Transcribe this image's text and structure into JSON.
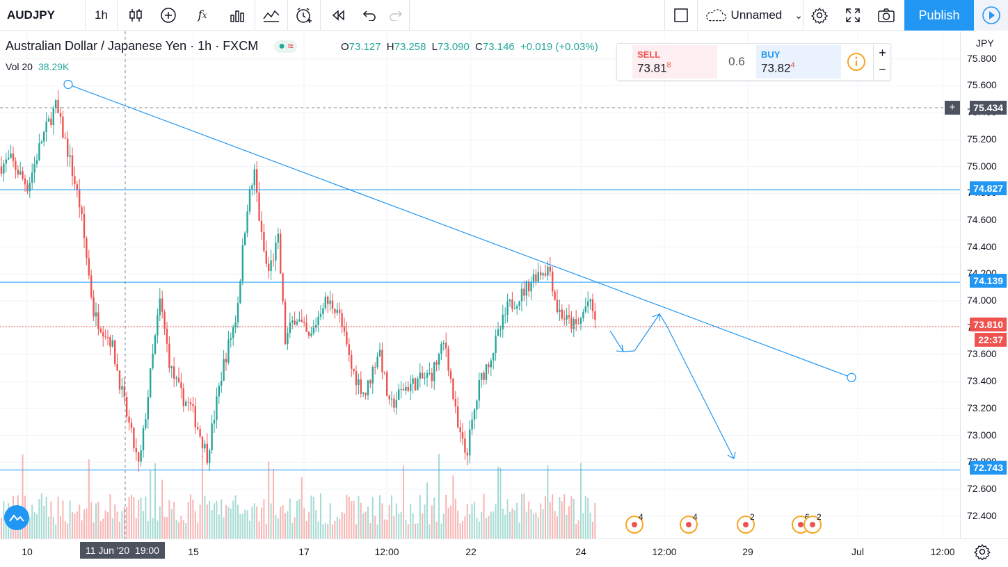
{
  "toolbar": {
    "symbol": "AUDJPY",
    "interval": "1h",
    "layout_name": "Unnamed",
    "publish_label": "Publish"
  },
  "legend": {
    "title": "Australian Dollar / Japanese Yen · 1h · FXCM",
    "open_label": "O",
    "open": "73.127",
    "high_label": "H",
    "high": "73.258",
    "low_label": "L",
    "low": "73.090",
    "close_label": "C",
    "close": "73.146",
    "change": "+0.019 (+0.03%)",
    "vol_label": "Vol 20",
    "vol_value": "38.29K"
  },
  "trade": {
    "sell_label": "SELL",
    "sell_price": "73.81",
    "sell_sup": "8",
    "spread": "0.6",
    "buy_label": "BUY",
    "buy_price": "73.82",
    "buy_sup": "4"
  },
  "price_axis": {
    "currency": "JPY",
    "ticks": [
      "75.800",
      "75.600",
      "75.400",
      "75.200",
      "75.000",
      "74.800",
      "74.600",
      "74.400",
      "74.200",
      "74.000",
      "73.800",
      "73.600",
      "73.400",
      "73.200",
      "73.000",
      "72.800",
      "72.600",
      "72.400"
    ],
    "labels": {
      "crosshair": "75.434",
      "level1": "74.827",
      "level2": "74.139",
      "current": "73.810",
      "countdown": "22:37",
      "level3": "72.743"
    }
  },
  "time_axis": {
    "ticks": [
      "10",
      "15",
      "17",
      "12:00",
      "22",
      "24",
      "12:00",
      "29",
      "Jul",
      "12:00"
    ],
    "crosshair_label": "11 Jun '20  19:00"
  },
  "events": [
    "4",
    "4",
    "2",
    "6",
    "2"
  ],
  "colors": {
    "up": "#26a69a",
    "down": "#ef5350",
    "line": "#2196f3",
    "publish": "#2196f3"
  },
  "chart_data": {
    "type": "candlestick",
    "title": "Australian Dollar / Japanese Yen · 1h · FXCM",
    "y_unit": "JPY",
    "ylim": [
      72.2,
      75.9
    ],
    "horizontal_levels": [
      74.827,
      74.139,
      72.743
    ],
    "current_price": 73.81,
    "trendline": {
      "start_price": 75.61,
      "end_price": 73.43
    },
    "last_bar": {
      "open": 73.127,
      "high": 73.258,
      "low": 73.09,
      "close": 73.146
    }
  }
}
